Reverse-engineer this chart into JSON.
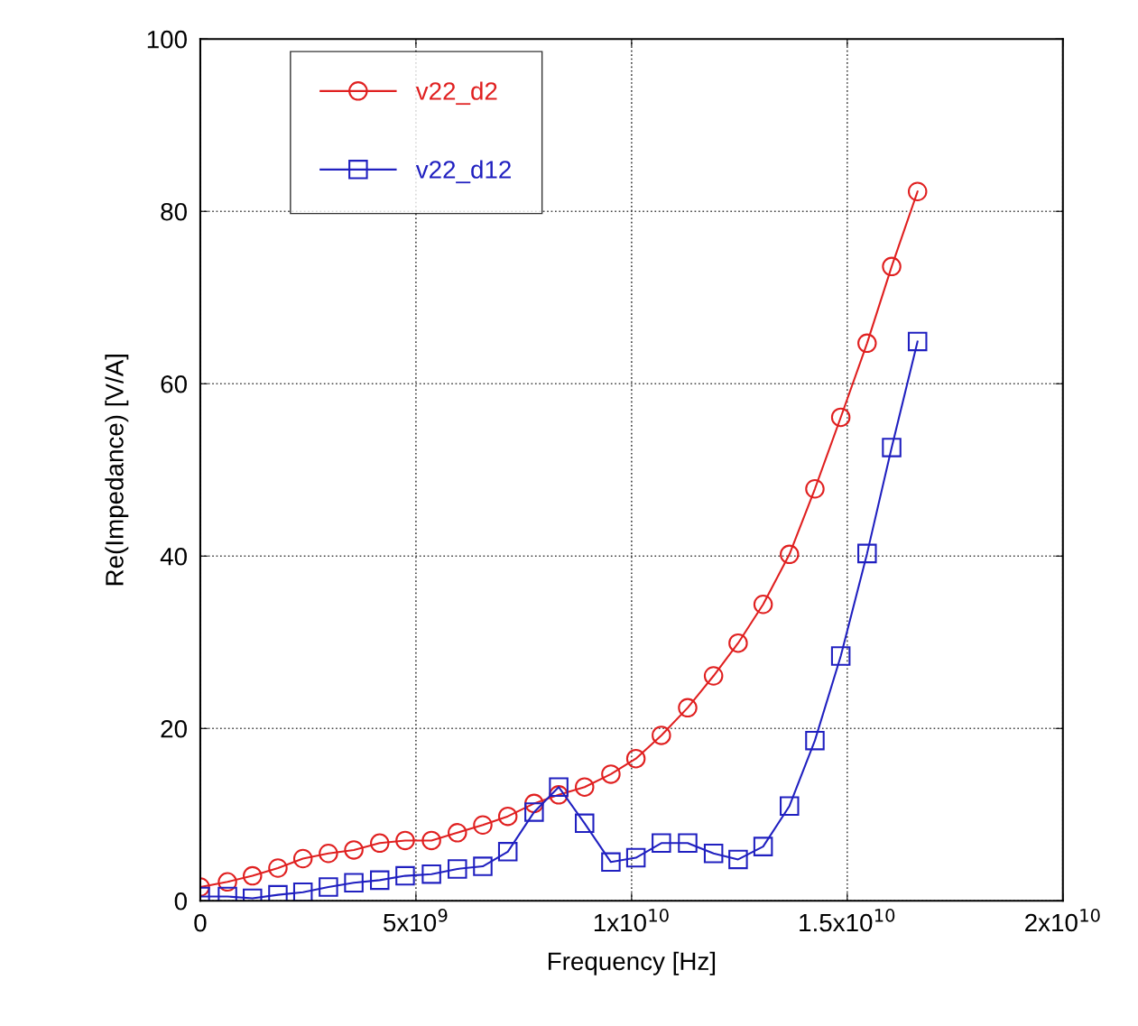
{
  "chart_data": {
    "type": "line",
    "xlabel": "Frequency [Hz]",
    "ylabel": "Re(Impedance) [V/A]",
    "xlim": [
      0,
      20000000000
    ],
    "ylim": [
      0,
      100
    ],
    "xticks": [
      0,
      {
        "value": 5000000000,
        "label": "5x10$^{9}$"
      },
      {
        "value": 10000000000,
        "label": "1x10$^{10}$"
      },
      {
        "value": 15000000000,
        "label": "1.5x10$^{10}$"
      },
      {
        "value": 20000000000,
        "label": "2x10$^{10}$"
      }
    ],
    "yticks": [
      0,
      20,
      40,
      60,
      80,
      100
    ],
    "grid": true,
    "legend": "top left",
    "line_style": "solid",
    "x": [
      0,
      630000000,
      1210000000,
      1800000000,
      2380000000,
      2970000000,
      3560000000,
      4160000000,
      4750000000,
      5360000000,
      5960000000,
      6550000000,
      7130000000,
      7740000000,
      8310000000,
      8910000000,
      9520000000,
      10100000000,
      10690000000,
      11300000000,
      11900000000,
      12470000000,
      13050000000,
      13660000000,
      14250000000,
      14850000000,
      15460000000,
      16030000000,
      16630000000
    ],
    "series": [
      {
        "name": "v22_d2",
        "color": "#e02020",
        "marker": "circle",
        "values": [
          1.6,
          2.2,
          2.9,
          3.8,
          4.9,
          5.5,
          5.9,
          6.7,
          7.0,
          7.0,
          7.9,
          8.8,
          9.8,
          11.3,
          12.3,
          13.2,
          14.7,
          16.5,
          19.2,
          22.4,
          26.1,
          29.9,
          34.4,
          40.2,
          47.8,
          56.1,
          64.7,
          73.6,
          82.3
        ]
      },
      {
        "name": "v22_d12",
        "color": "#2020c0",
        "marker": "square",
        "values": [
          0.5,
          0.5,
          0.3,
          0.7,
          1.0,
          1.6,
          2.1,
          2.4,
          2.9,
          3.1,
          3.7,
          4.0,
          5.7,
          10.3,
          13.2,
          9.0,
          4.5,
          5.0,
          6.7,
          6.7,
          5.5,
          4.8,
          6.3,
          11.0,
          18.6,
          28.4,
          40.3,
          52.6,
          64.9
        ]
      }
    ]
  }
}
